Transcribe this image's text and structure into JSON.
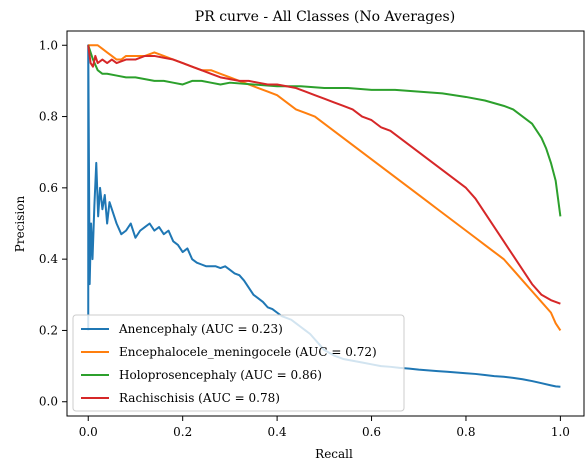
{
  "chart_data": {
    "type": "line",
    "title": "PR curve - All Classes (No Averages)",
    "xlabel": "Recall",
    "ylabel": "Precision",
    "xlim": [
      -0.045,
      1.05
    ],
    "ylim": [
      -0.04,
      1.04
    ],
    "xticks": [
      0.0,
      0.2,
      0.4,
      0.6,
      0.8,
      1.0
    ],
    "xtick_labels": [
      "0.0",
      "0.2",
      "0.4",
      "0.6",
      "0.8",
      "1.0"
    ],
    "yticks": [
      0.0,
      0.2,
      0.4,
      0.6,
      0.8,
      1.0
    ],
    "ytick_labels": [
      "0.0",
      "0.2",
      "0.4",
      "0.6",
      "0.8",
      "1.0"
    ],
    "grid": false,
    "legend_position": "lower-left",
    "series": [
      {
        "name": "Anencephaly (AUC = 0.23)",
        "color": "#1f77b4",
        "x": [
          0.0,
          0.0,
          0.003,
          0.006,
          0.009,
          0.013,
          0.017,
          0.021,
          0.025,
          0.03,
          0.035,
          0.04,
          0.045,
          0.05,
          0.06,
          0.07,
          0.08,
          0.09,
          0.1,
          0.11,
          0.12,
          0.13,
          0.14,
          0.15,
          0.16,
          0.17,
          0.18,
          0.19,
          0.2,
          0.21,
          0.22,
          0.23,
          0.24,
          0.25,
          0.26,
          0.27,
          0.28,
          0.29,
          0.3,
          0.31,
          0.32,
          0.33,
          0.34,
          0.35,
          0.36,
          0.37,
          0.38,
          0.39,
          0.4,
          0.41,
          0.42,
          0.43,
          0.44,
          0.45,
          0.46,
          0.47,
          0.48,
          0.49,
          0.5,
          0.52,
          0.54,
          0.56,
          0.58,
          0.6,
          0.62,
          0.64,
          0.66,
          0.68,
          0.7,
          0.72,
          0.74,
          0.76,
          0.78,
          0.8,
          0.82,
          0.84,
          0.86,
          0.88,
          0.9,
          0.92,
          0.94,
          0.96,
          0.98,
          0.99,
          1.0
        ],
        "y": [
          0.2,
          1.0,
          0.33,
          0.5,
          0.4,
          0.55,
          0.67,
          0.52,
          0.6,
          0.54,
          0.58,
          0.5,
          0.56,
          0.54,
          0.5,
          0.47,
          0.48,
          0.5,
          0.46,
          0.48,
          0.49,
          0.5,
          0.48,
          0.49,
          0.47,
          0.48,
          0.45,
          0.44,
          0.42,
          0.43,
          0.4,
          0.39,
          0.385,
          0.38,
          0.38,
          0.38,
          0.375,
          0.38,
          0.37,
          0.36,
          0.355,
          0.34,
          0.32,
          0.3,
          0.29,
          0.28,
          0.265,
          0.26,
          0.25,
          0.24,
          0.235,
          0.23,
          0.22,
          0.21,
          0.2,
          0.19,
          0.175,
          0.16,
          0.145,
          0.13,
          0.12,
          0.115,
          0.11,
          0.105,
          0.1,
          0.098,
          0.095,
          0.093,
          0.09,
          0.088,
          0.086,
          0.084,
          0.082,
          0.08,
          0.078,
          0.075,
          0.072,
          0.07,
          0.067,
          0.063,
          0.058,
          0.052,
          0.046,
          0.043,
          0.042
        ]
      },
      {
        "name": "Encephalocele_meningocele (AUC = 0.72)",
        "color": "#ff7f0e",
        "x": [
          0.0,
          0.0,
          0.01,
          0.02,
          0.03,
          0.04,
          0.05,
          0.06,
          0.07,
          0.08,
          0.1,
          0.12,
          0.14,
          0.16,
          0.18,
          0.2,
          0.22,
          0.24,
          0.26,
          0.28,
          0.3,
          0.32,
          0.34,
          0.36,
          0.38,
          0.4,
          0.42,
          0.44,
          0.46,
          0.48,
          0.5,
          0.52,
          0.54,
          0.56,
          0.58,
          0.6,
          0.62,
          0.64,
          0.66,
          0.68,
          0.7,
          0.72,
          0.74,
          0.76,
          0.78,
          0.8,
          0.82,
          0.84,
          0.86,
          0.88,
          0.9,
          0.92,
          0.94,
          0.96,
          0.98,
          0.99,
          1.0
        ],
        "y": [
          1.0,
          1.0,
          1.0,
          1.0,
          0.99,
          0.98,
          0.97,
          0.96,
          0.96,
          0.97,
          0.97,
          0.97,
          0.98,
          0.97,
          0.96,
          0.95,
          0.94,
          0.93,
          0.93,
          0.92,
          0.91,
          0.9,
          0.89,
          0.88,
          0.87,
          0.86,
          0.84,
          0.82,
          0.81,
          0.8,
          0.78,
          0.76,
          0.74,
          0.72,
          0.7,
          0.68,
          0.66,
          0.64,
          0.62,
          0.6,
          0.58,
          0.56,
          0.54,
          0.52,
          0.5,
          0.48,
          0.46,
          0.44,
          0.42,
          0.4,
          0.37,
          0.34,
          0.31,
          0.28,
          0.25,
          0.22,
          0.2
        ]
      },
      {
        "name": "Holoprosencephaly (AUC = 0.86)",
        "color": "#2ca02c",
        "x": [
          0.0,
          0.0,
          0.01,
          0.02,
          0.03,
          0.04,
          0.06,
          0.08,
          0.1,
          0.12,
          0.14,
          0.16,
          0.18,
          0.2,
          0.22,
          0.24,
          0.26,
          0.28,
          0.3,
          0.35,
          0.4,
          0.45,
          0.5,
          0.55,
          0.6,
          0.65,
          0.7,
          0.75,
          0.8,
          0.84,
          0.88,
          0.9,
          0.92,
          0.94,
          0.96,
          0.97,
          0.98,
          0.99,
          1.0
        ],
        "y": [
          1.0,
          1.0,
          0.96,
          0.93,
          0.92,
          0.92,
          0.915,
          0.91,
          0.91,
          0.905,
          0.9,
          0.9,
          0.895,
          0.89,
          0.9,
          0.9,
          0.895,
          0.89,
          0.895,
          0.89,
          0.885,
          0.885,
          0.88,
          0.88,
          0.875,
          0.875,
          0.87,
          0.865,
          0.855,
          0.845,
          0.83,
          0.82,
          0.8,
          0.78,
          0.74,
          0.71,
          0.67,
          0.62,
          0.52
        ]
      },
      {
        "name": "Rachischisis (AUC = 0.78)",
        "color": "#d62728",
        "x": [
          0.0,
          0.0,
          0.005,
          0.01,
          0.015,
          0.02,
          0.03,
          0.04,
          0.05,
          0.06,
          0.08,
          0.1,
          0.12,
          0.14,
          0.16,
          0.18,
          0.2,
          0.22,
          0.24,
          0.26,
          0.28,
          0.3,
          0.32,
          0.34,
          0.36,
          0.38,
          0.4,
          0.42,
          0.44,
          0.46,
          0.48,
          0.5,
          0.52,
          0.54,
          0.56,
          0.58,
          0.6,
          0.62,
          0.64,
          0.66,
          0.68,
          0.7,
          0.72,
          0.74,
          0.76,
          0.78,
          0.8,
          0.82,
          0.84,
          0.86,
          0.88,
          0.9,
          0.92,
          0.94,
          0.96,
          0.98,
          1.0
        ],
        "y": [
          1.0,
          1.0,
          0.95,
          0.94,
          0.97,
          0.95,
          0.96,
          0.95,
          0.96,
          0.95,
          0.96,
          0.96,
          0.97,
          0.97,
          0.965,
          0.96,
          0.95,
          0.94,
          0.93,
          0.92,
          0.91,
          0.905,
          0.9,
          0.9,
          0.895,
          0.89,
          0.89,
          0.885,
          0.88,
          0.87,
          0.86,
          0.85,
          0.84,
          0.83,
          0.82,
          0.8,
          0.79,
          0.77,
          0.76,
          0.74,
          0.72,
          0.7,
          0.68,
          0.66,
          0.64,
          0.62,
          0.6,
          0.57,
          0.53,
          0.49,
          0.45,
          0.41,
          0.37,
          0.33,
          0.3,
          0.285,
          0.275
        ]
      }
    ]
  }
}
